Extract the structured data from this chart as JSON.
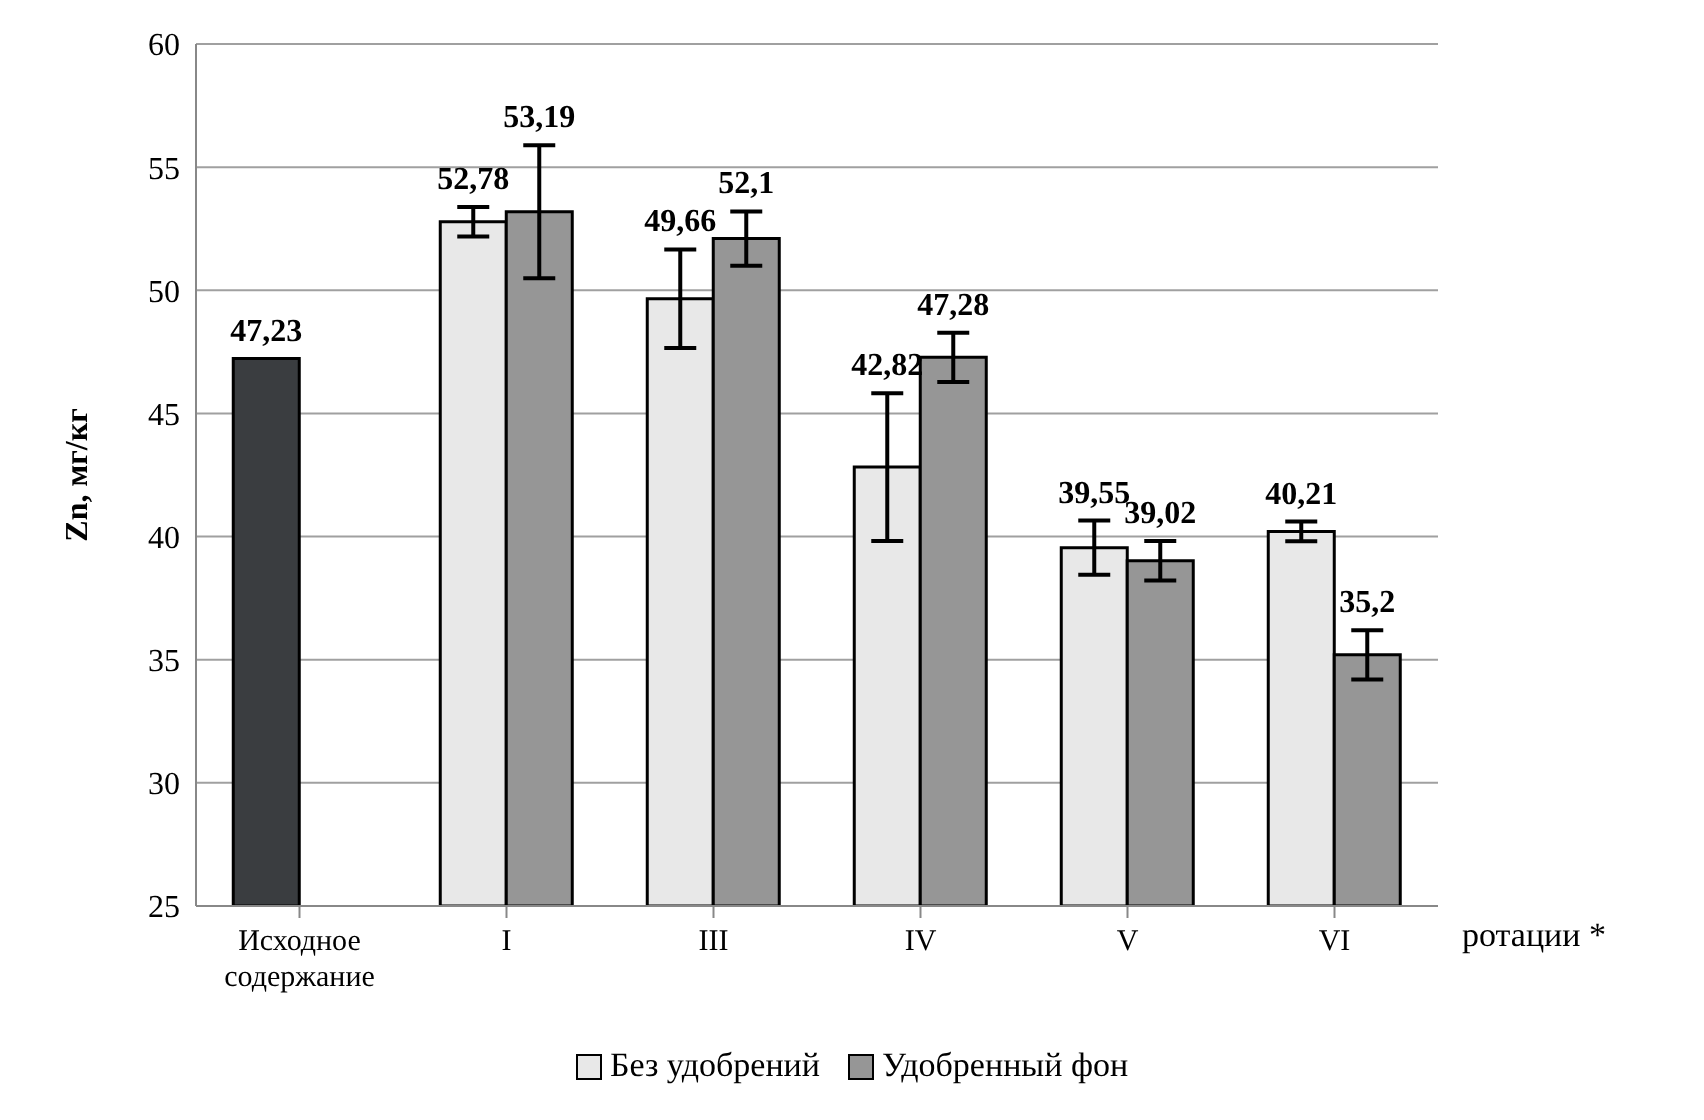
{
  "chart_data": {
    "type": "bar",
    "ylabel": "Zn, мг/кг",
    "xlabel": "ротации  *",
    "categories": [
      "Исходное содержание",
      "I",
      "III",
      "IV",
      "V",
      "VI"
    ],
    "series": [
      {
        "name": "Без удобрений",
        "color": "#e8e8e8",
        "colors": [
          "#3a3d40",
          "#e8e8e8",
          "#e8e8e8",
          "#e8e8e8",
          "#e8e8e8",
          "#e8e8e8"
        ],
        "values": [
          47.23,
          52.78,
          49.66,
          42.82,
          39.55,
          40.21
        ],
        "value_labels": [
          "47,23",
          "52,78",
          "49,66",
          "42,82",
          "39,55",
          "40,21"
        ],
        "errors": [
          null,
          0.6,
          2,
          3,
          1.1,
          0.4
        ]
      },
      {
        "name": "Удобренный фон",
        "color": "#969696",
        "values": [
          null,
          53.19,
          52.1,
          47.28,
          39.02,
          35.2
        ],
        "value_labels": [
          null,
          "53,19",
          "52,1",
          "47,28",
          "39,02",
          "35,2"
        ],
        "errors": [
          null,
          2.7,
          1.1,
          1,
          0.8,
          1
        ]
      }
    ],
    "ylim": [
      25,
      60
    ],
    "yticks": [
      25,
      30,
      35,
      40,
      45,
      50,
      55,
      60
    ],
    "grid": "y",
    "legend": "bottom"
  }
}
